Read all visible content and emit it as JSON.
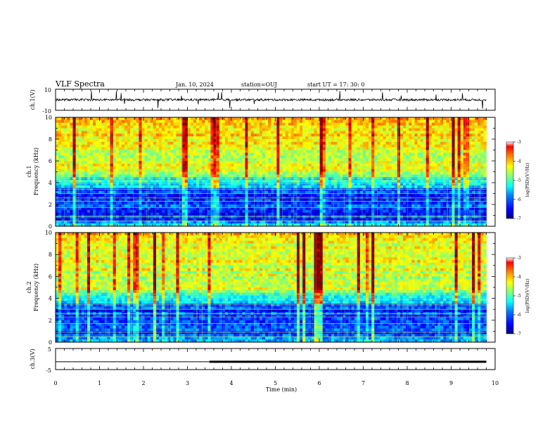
{
  "header": {
    "title": "VLF Spectra",
    "date": "Jan. 10, 2024",
    "station": "station=OUJ",
    "start": "start  UT  =   17: 30: 0"
  },
  "colors": {
    "colormap": [
      "#00007f",
      "#0000ff",
      "#007fff",
      "#00ffff",
      "#7fff7f",
      "#ffff00",
      "#ff7f00",
      "#ff0000",
      "#7f0000"
    ],
    "trace": "#000000",
    "background": "#ffffff"
  },
  "chart_data": [
    {
      "type": "line",
      "panel": "ch1-waveform",
      "ylabel": "ch.1(V)",
      "ylim": [
        -10,
        10
      ],
      "yticks": [
        "10",
        "-10"
      ],
      "description_values": {
        "baseline": 0,
        "noise_amplitude": 2
      }
    },
    {
      "type": "heatmap",
      "panel": "ch1-spectrogram",
      "ylabel": "ch.1\nFrequency (kHz)",
      "ylim": [
        0,
        10
      ],
      "yticks": [
        "0",
        "2",
        "4",
        "6",
        "8",
        "10"
      ],
      "colorbar": {
        "label": "log(PSD)(V²/Hz)",
        "range": [
          -7,
          -3
        ],
        "ticks": [
          "-3",
          "-4",
          "-5",
          "-6",
          "-7"
        ]
      }
    },
    {
      "type": "heatmap",
      "panel": "ch2-spectrogram",
      "ylabel": "ch.2\nFrequency (kHz)",
      "ylim": [
        0,
        10
      ],
      "yticks": [
        "0",
        "2",
        "4",
        "6",
        "8",
        "10"
      ],
      "colorbar": {
        "label": "log(PSD)(V²/Hz)",
        "range": [
          -7,
          -3
        ],
        "ticks": [
          "-3",
          "-4",
          "-5",
          "-6",
          "-7"
        ]
      }
    },
    {
      "type": "line",
      "panel": "ch3-signal",
      "ylabel": "ch.3(V)",
      "ylim": [
        -5,
        5
      ],
      "yticks": [
        "5",
        "-5"
      ],
      "x": [
        0,
        3.5,
        3.5,
        9.8
      ],
      "y": [
        -1.3,
        -1.3,
        -1.3,
        -1.3
      ],
      "thin_until": 3.5
    }
  ],
  "xaxis": {
    "label": "Time (min)",
    "xlim": [
      0,
      10
    ],
    "ticks": [
      "0",
      "1",
      "2",
      "3",
      "4",
      "5",
      "6",
      "7",
      "8",
      "9",
      "10"
    ],
    "data_end": 9.8
  }
}
